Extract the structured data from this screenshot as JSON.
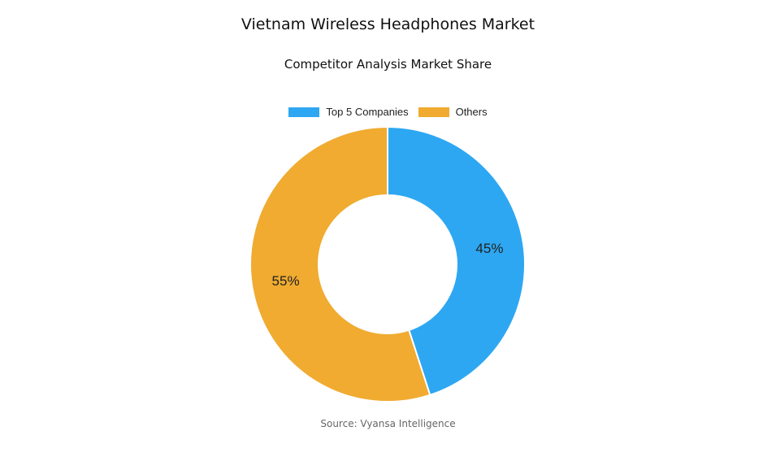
{
  "chart_data": {
    "type": "pie",
    "variant": "donut",
    "title": "Vietnam Wireless Headphones Market",
    "subtitle": "Competitor Analysis Market Share",
    "legend_placement": "top",
    "categories": [
      "Top 5 Companies",
      "Others"
    ],
    "values": [
      45,
      55
    ],
    "labels": [
      "45%",
      "55%"
    ],
    "colors": [
      "#2ea7f2",
      "#f0ab30"
    ],
    "source": "Source: Vyansa Intelligence"
  }
}
